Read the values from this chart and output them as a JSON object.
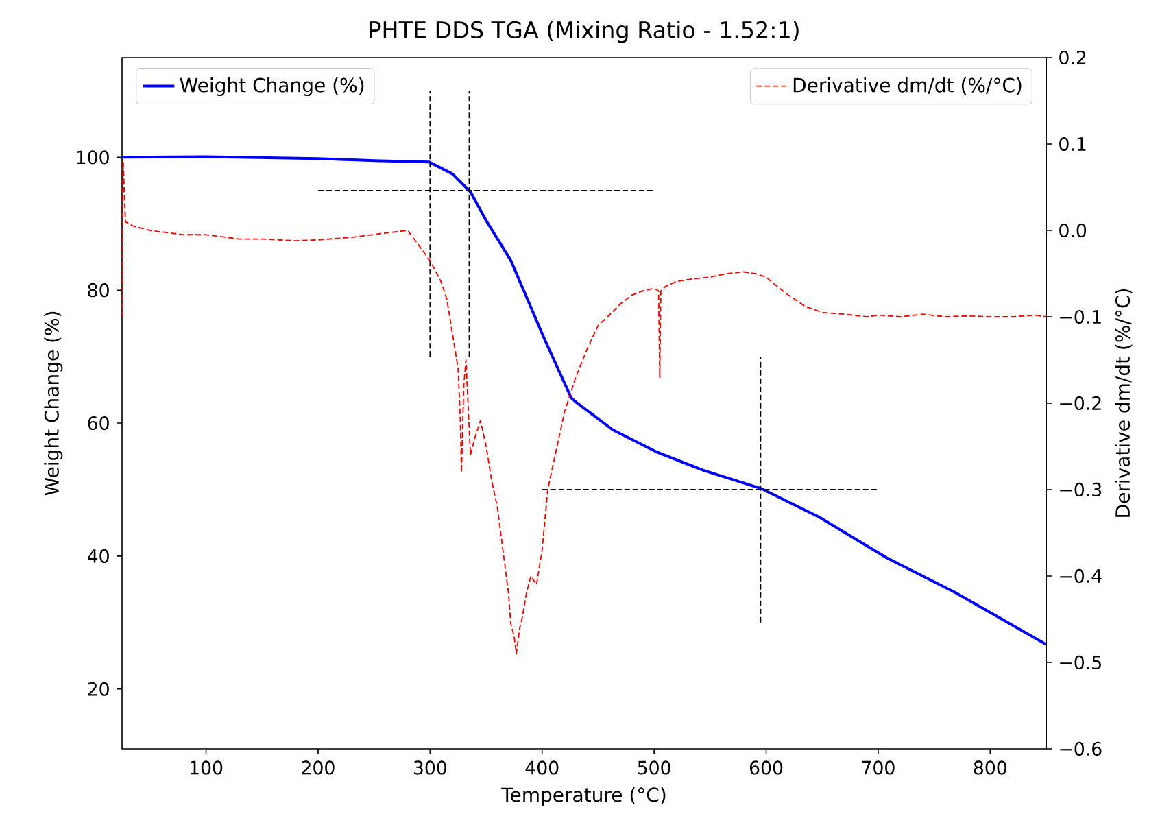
{
  "chart_data": {
    "type": "line",
    "title": "PHTE DDS TGA (Mixing Ratio - 1.52:1)",
    "xlabel": "Temperature (°C)",
    "ylabel": "Weight Change (%)",
    "y2label": "Derivative dm/dt (%/°C)",
    "xlim": [
      25,
      850
    ],
    "xticks": [
      100,
      200,
      300,
      400,
      500,
      600,
      700,
      800
    ],
    "ylim": [
      11,
      115
    ],
    "yticks": [
      20,
      40,
      60,
      80,
      100
    ],
    "y2lim": [
      -0.6,
      0.2
    ],
    "y2ticks": [
      {
        "value": -0.6,
        "label": "−0.6"
      },
      {
        "value": -0.5,
        "label": "−0.5"
      },
      {
        "value": -0.4,
        "label": "−0.4"
      },
      {
        "value": -0.3,
        "label": "−0.3"
      },
      {
        "value": -0.2,
        "label": "−0.2"
      },
      {
        "value": -0.1,
        "label": "−0.1"
      },
      {
        "value": 0.0,
        "label": "0.0"
      },
      0.1,
      0.2
    ],
    "legend": "top",
    "series": [
      {
        "name": "Weight Change (%)",
        "color": "#0000ff",
        "line_style": "solid",
        "x": [
          25,
          100,
          200,
          250,
          299,
          320,
          336,
          350,
          372,
          402,
          426,
          430,
          463,
          503,
          544,
          595,
          647,
          708,
          769,
          850
        ],
        "values": [
          100,
          100.1,
          99.8,
          99.5,
          99.3,
          97.5,
          94.8,
          90.5,
          84.5,
          72.7,
          63.8,
          63.2,
          59,
          55.6,
          52.9,
          50.2,
          45.9,
          39.7,
          34.5,
          26.7
        ]
      },
      {
        "name": "Derivative dm/dt (%/°C)",
        "color": "#ff0000",
        "line_style": "dashed",
        "axis": "y2",
        "x": [
          25,
          26,
          28,
          35,
          50,
          80,
          100,
          130,
          150,
          180,
          200,
          230,
          260,
          280,
          300,
          310,
          315,
          320,
          325,
          327,
          328,
          330,
          332,
          336,
          340,
          345,
          350,
          355,
          360,
          365,
          370,
          372,
          375,
          377,
          380,
          382,
          386,
          390,
          395,
          400,
          405,
          410,
          415,
          420,
          430,
          440,
          450,
          460,
          470,
          480,
          490,
          500,
          504,
          505,
          506,
          510,
          520,
          535,
          550,
          565,
          580,
          590,
          600,
          610,
          620,
          635,
          650,
          670,
          690,
          700,
          720,
          740,
          760,
          780,
          800,
          820,
          840,
          850
        ],
        "values": [
          -0.1,
          0.08,
          0.01,
          0.005,
          0.0,
          -0.005,
          -0.005,
          -0.01,
          -0.01,
          -0.012,
          -0.011,
          -0.008,
          -0.003,
          0.0,
          -0.035,
          -0.06,
          -0.08,
          -0.12,
          -0.16,
          -0.22,
          -0.28,
          -0.18,
          -0.15,
          -0.26,
          -0.24,
          -0.22,
          -0.25,
          -0.29,
          -0.32,
          -0.37,
          -0.42,
          -0.455,
          -0.47,
          -0.49,
          -0.46,
          -0.45,
          -0.42,
          -0.4,
          -0.41,
          -0.37,
          -0.3,
          -0.27,
          -0.24,
          -0.21,
          -0.17,
          -0.138,
          -0.11,
          -0.098,
          -0.085,
          -0.075,
          -0.07,
          -0.067,
          -0.07,
          -0.17,
          -0.07,
          -0.065,
          -0.059,
          -0.056,
          -0.054,
          -0.05,
          -0.048,
          -0.05,
          -0.054,
          -0.065,
          -0.075,
          -0.088,
          -0.095,
          -0.097,
          -0.1,
          -0.098,
          -0.1,
          -0.097,
          -0.1,
          -0.099,
          -0.1,
          -0.1,
          -0.098,
          -0.1
        ]
      },
      {
        "color": "#000000",
        "line_style": "dashed",
        "x": [
          300,
          300
        ],
        "values": [
          70,
          110
        ]
      },
      {
        "color": "#000000",
        "line_style": "dashed",
        "x": [
          335,
          335
        ],
        "values": [
          70,
          110
        ]
      },
      {
        "color": "#000000",
        "line_style": "dashed",
        "x": [
          200,
          500
        ],
        "values": [
          95,
          95
        ]
      },
      {
        "color": "#000000",
        "line_style": "dashed",
        "x": [
          400,
          700
        ],
        "values": [
          50,
          50
        ]
      },
      {
        "color": "#000000",
        "line_style": "dashed",
        "x": [
          595,
          595
        ],
        "values": [
          30,
          70
        ]
      }
    ]
  }
}
